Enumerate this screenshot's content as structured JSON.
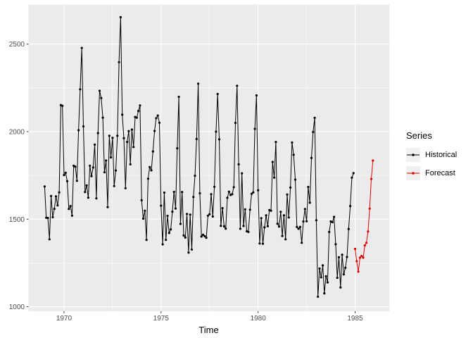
{
  "chart_data": {
    "type": "line",
    "title": "",
    "xlabel": "Time",
    "ylabel": "",
    "legend_title": "Series",
    "legend_position": "right",
    "frequency": 12,
    "x_domain": [
      1968.17,
      1986.77
    ],
    "y_domain": [
      974,
      2726
    ],
    "x_ticks": [
      1970,
      1975,
      1980,
      1985
    ],
    "x_minor_ticks": [
      1972.5,
      1977.5,
      1982.5
    ],
    "y_ticks": [
      1000,
      1500,
      2000,
      2500
    ],
    "y_minor_ticks": [
      1250,
      1750,
      2250
    ],
    "grid": true,
    "series": [
      {
        "name": "Historical",
        "color": "#000000",
        "start": 1969.0,
        "values": [
          1687,
          1508,
          1507,
          1385,
          1632,
          1511,
          1559,
          1630,
          1579,
          1653,
          2152,
          2148,
          1752,
          1765,
          1717,
          1558,
          1575,
          1520,
          1805,
          1800,
          1719,
          2008,
          2242,
          2478,
          2030,
          1655,
          1693,
          1623,
          1805,
          1746,
          1795,
          1926,
          1619,
          1992,
          2233,
          2192,
          2080,
          1768,
          1835,
          1569,
          1976,
          1853,
          1965,
          1689,
          1778,
          1976,
          2397,
          2654,
          2097,
          1963,
          1677,
          1941,
          2003,
          1813,
          2012,
          1912,
          2084,
          2080,
          2118,
          2150,
          1608,
          1503,
          1548,
          1382,
          1731,
          1798,
          1779,
          1887,
          2004,
          2077,
          2092,
          2051,
          1577,
          1356,
          1652,
          1382,
          1519,
          1421,
          1442,
          1543,
          1656,
          1561,
          1905,
          2199,
          1473,
          1655,
          1407,
          1395,
          1530,
          1309,
          1526,
          1327,
          1627,
          1748,
          1958,
          2274,
          1648,
          1401,
          1411,
          1403,
          1394,
          1520,
          1528,
          1643,
          1515,
          1685,
          2000,
          2215,
          1956,
          1462,
          1563,
          1459,
          1446,
          1622,
          1657,
          1638,
          1643,
          1683,
          2050,
          2262,
          1813,
          1445,
          1762,
          1461,
          1556,
          1431,
          1427,
          1554,
          1645,
          1653,
          2016,
          2207,
          1665,
          1361,
          1506,
          1360,
          1453,
          1522,
          1460,
          1552,
          1548,
          1827,
          1737,
          1941,
          1474,
          1458,
          1542,
          1404,
          1522,
          1385,
          1641,
          1510,
          1681,
          1938,
          1868,
          1726,
          1456,
          1445,
          1456,
          1365,
          1487,
          1558,
          1488,
          1684,
          1594,
          1850,
          1998,
          2079,
          1494,
          1057,
          1218,
          1168,
          1236,
          1076,
          1174,
          1139,
          1427,
          1487,
          1483,
          1513,
          1357,
          1165,
          1282,
          1110,
          1297,
          1185,
          1222,
          1284,
          1444,
          1575,
          1737,
          1763
        ]
      },
      {
        "name": "Forecast",
        "color": "#E00000",
        "start": 1985.0,
        "values": [
          1330,
          1260,
          1200,
          1280,
          1290,
          1280,
          1350,
          1365,
          1430,
          1560,
          1730,
          1835
        ]
      }
    ],
    "colors": {
      "panel_bg": "#EBEBEB",
      "grid": "#FFFFFF",
      "axis_text": "#4D4D4D",
      "tick_mark": "#333333",
      "legend_key_bg": "#F0F0F0"
    }
  }
}
